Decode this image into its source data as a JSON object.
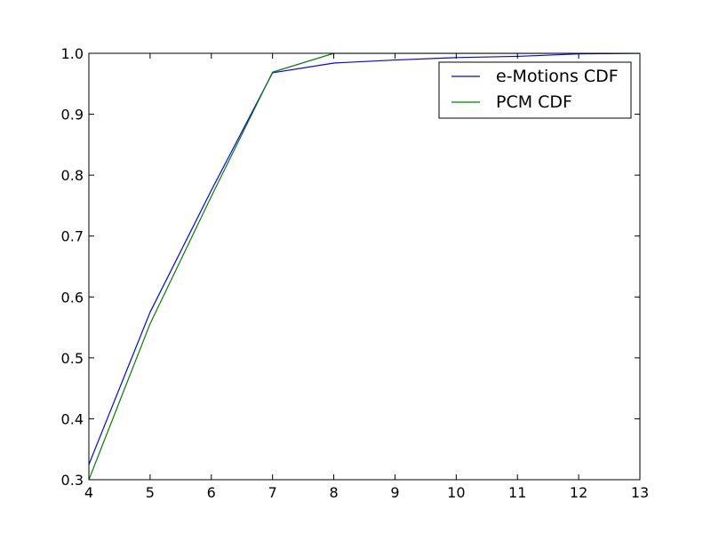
{
  "chart_data": {
    "type": "line",
    "title": "",
    "xlabel": "",
    "ylabel": "",
    "xlim": [
      4,
      13
    ],
    "ylim": [
      0.3,
      1.0
    ],
    "xticks": [
      "4",
      "5",
      "6",
      "7",
      "8",
      "9",
      "10",
      "11",
      "12",
      "13"
    ],
    "yticks": [
      "0.3",
      "0.4",
      "0.5",
      "0.6",
      "0.7",
      "0.8",
      "0.9",
      "1.0"
    ],
    "grid": false,
    "legend_position": "top-right",
    "series": [
      {
        "name": "e-Motions CDF",
        "color": "#0000ff",
        "points": [
          [
            4,
            0.325
          ],
          [
            5,
            0.575
          ],
          [
            6,
            0.775
          ],
          [
            7,
            0.968
          ],
          [
            8,
            0.984
          ],
          [
            9,
            0.989
          ],
          [
            10,
            0.993
          ],
          [
            11,
            0.995
          ],
          [
            12,
            0.999
          ],
          [
            13,
            1.0
          ]
        ]
      },
      {
        "name": "PCM CDF",
        "color": "#008000",
        "points": [
          [
            4,
            0.3
          ],
          [
            5,
            0.556
          ],
          [
            6,
            0.765
          ],
          [
            7,
            0.969
          ],
          [
            8,
            1.0
          ],
          [
            9,
            1.0
          ],
          [
            10,
            1.0
          ],
          [
            11,
            1.0
          ],
          [
            12,
            1.0
          ],
          [
            13,
            1.0
          ]
        ]
      }
    ]
  }
}
